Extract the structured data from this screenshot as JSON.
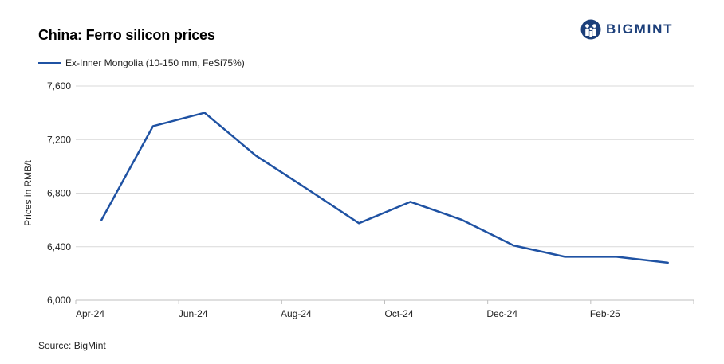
{
  "brand": {
    "name": "BIGMINT",
    "logo_icon": "bigmint-logo-icon"
  },
  "source": "Source: BigMint",
  "colors": {
    "series": "#1f52a3",
    "brand": "#1c3f7a",
    "grid": "#d9d9d9",
    "axis": "#bfbfbf"
  },
  "chart_data": {
    "type": "line",
    "title": "China: Ferro silicon prices",
    "xlabel": "",
    "ylabel": "Prices in RMB/t",
    "x_ticks": [
      "Apr-24",
      "Jun-24",
      "Aug-24",
      "Oct-24",
      "Dec-24",
      "Feb-25"
    ],
    "y_ticks": [
      "6,000",
      "6,400",
      "6,800",
      "7,200",
      "7,600"
    ],
    "ylim": [
      6000,
      7600
    ],
    "x": [
      "Apr-24",
      "May-24",
      "Jun-24",
      "Jul-24",
      "Aug-24",
      "Sep-24",
      "Oct-24",
      "Nov-24",
      "Dec-24",
      "Jan-25",
      "Feb-25",
      "Mar-25"
    ],
    "series": [
      {
        "name": "Ex-Inner Mongolia (10-150 mm, FeSi75%)",
        "values": [
          6600,
          7300,
          7400,
          7080,
          6830,
          6575,
          6735,
          6600,
          6410,
          6325,
          6325,
          6280
        ]
      }
    ],
    "grid": true,
    "legend_position": "top-left"
  }
}
